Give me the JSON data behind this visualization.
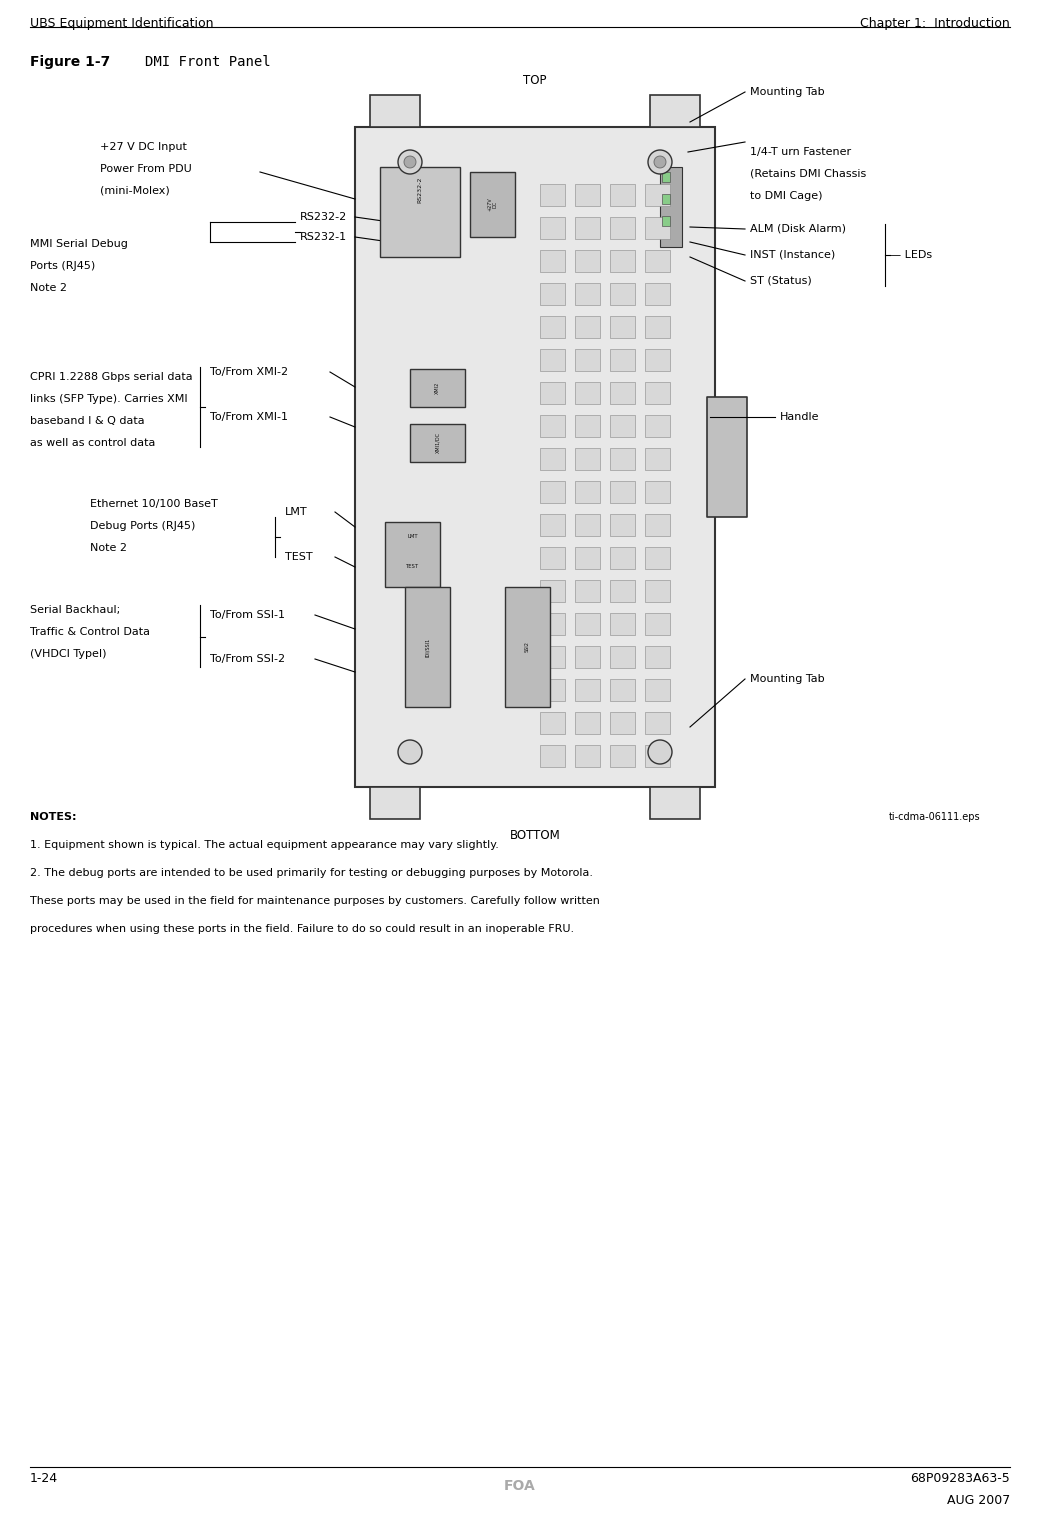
{
  "header_left": "UBS Equipment Identification",
  "header_right": "Chapter 1:  Introduction",
  "figure_label": "Figure 1-7",
  "figure_title": "DMI Front Panel",
  "footer_left": "1-24",
  "footer_center": "FOA",
  "footer_right_top": "68P09283A63-5",
  "footer_right_bot": "AUG 2007",
  "eps_label": "ti-cdma-06111.eps",
  "notes": [
    "NOTES:",
    "1. Equipment shown is typical. The actual equipment appearance may vary slightly.",
    "2. The debug ports are intended to be used primarily for testing or debugging purposes by Motorola.",
    "These ports may be used in the field for maintenance purposes by customers. Carefully follow written",
    "procedures when using these ports in the field. Failure to do so could result in an inoperable FRU."
  ],
  "bg_color": "#ffffff",
  "panel_color": "#d0d0d0",
  "panel_border_color": "#333333",
  "text_color": "#000000",
  "header_color": "#000000",
  "footer_gray": "#aaaaaa"
}
